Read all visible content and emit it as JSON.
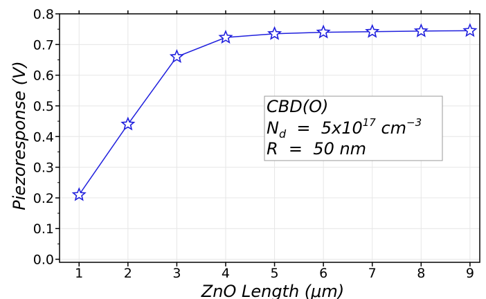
{
  "chart_data": {
    "type": "line",
    "xlabel": "ZnO Length (μm)",
    "ylabel": "Piezoresponse (V)",
    "x": [
      1,
      2,
      3,
      4,
      5,
      6,
      7,
      8,
      9
    ],
    "xlim": [
      0.6,
      9.2
    ],
    "ylim": [
      -0.01,
      0.8
    ],
    "xticks": [
      "1",
      "2",
      "3",
      "4",
      "5",
      "6",
      "7",
      "8",
      "9"
    ],
    "yticks": [
      "0.0",
      "0.1",
      "0.2",
      "0.3",
      "0.4",
      "0.5",
      "0.6",
      "0.7",
      "0.8"
    ],
    "grid": true,
    "series": [
      {
        "values": [
          0.21,
          0.44,
          0.66,
          0.723,
          0.735,
          0.74,
          0.742,
          0.744,
          0.745
        ],
        "color": "#1f1fdd",
        "marker": "star-open"
      }
    ],
    "annotation": {
      "line1": "CBD(O)",
      "line2_prefix": "N",
      "line2_sub": "d",
      "line2_mid": "  =  5x10",
      "line2_sup1": "17",
      "line2_unit": " cm",
      "line2_sup2": "−3",
      "line3": "R  =  50 nm",
      "position": "center-right"
    }
  }
}
